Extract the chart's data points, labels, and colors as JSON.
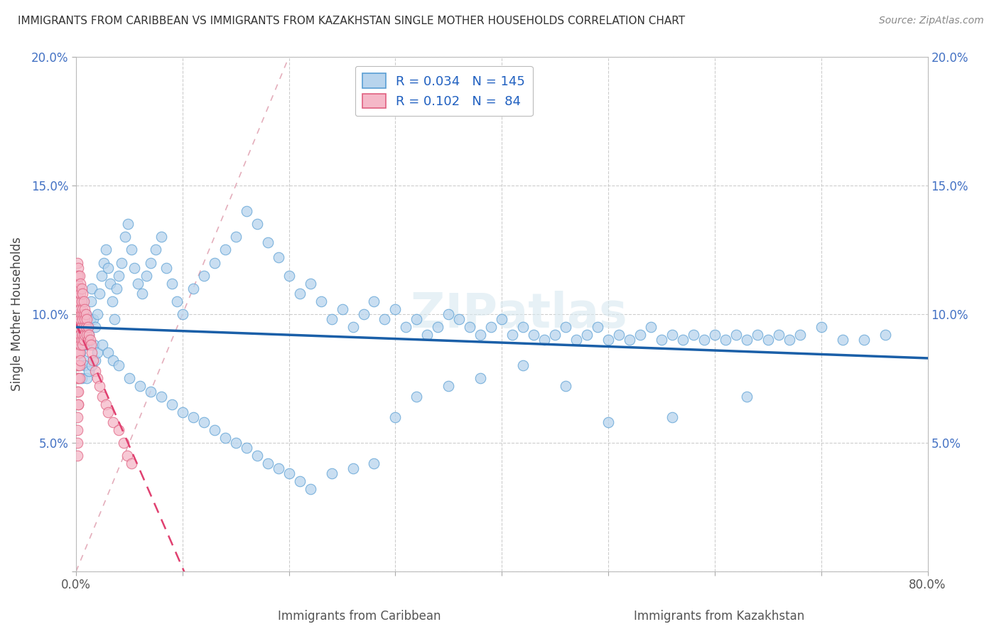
{
  "title": "IMMIGRANTS FROM CARIBBEAN VS IMMIGRANTS FROM KAZAKHSTAN SINGLE MOTHER HOUSEHOLDS CORRELATION CHART",
  "source": "Source: ZipAtlas.com",
  "ylabel": "Single Mother Households",
  "xlabel_caribbean": "Immigrants from Caribbean",
  "xlabel_kazakhstan": "Immigrants from Kazakhstan",
  "legend_caribbean_R": "0.034",
  "legend_caribbean_N": "145",
  "legend_kazakhstan_R": "0.102",
  "legend_kazakhstan_N": "84",
  "xlim": [
    0,
    0.8
  ],
  "ylim": [
    0,
    0.2
  ],
  "color_caribbean": "#b8d4ed",
  "color_caribbean_edge": "#5a9fd4",
  "color_caribbean_line": "#1a5fa8",
  "color_kazakhstan": "#f5b8c8",
  "color_kazakhstan_edge": "#e06080",
  "color_kazakhstan_line": "#e04070",
  "color_diag": "#e0a0b0",
  "watermark": "ZIPatlas",
  "caribbean_x": [
    0.003,
    0.004,
    0.005,
    0.006,
    0.007,
    0.008,
    0.009,
    0.01,
    0.011,
    0.012,
    0.013,
    0.014,
    0.015,
    0.016,
    0.017,
    0.018,
    0.02,
    0.022,
    0.024,
    0.026,
    0.028,
    0.03,
    0.032,
    0.034,
    0.036,
    0.038,
    0.04,
    0.043,
    0.046,
    0.049,
    0.052,
    0.055,
    0.058,
    0.062,
    0.066,
    0.07,
    0.075,
    0.08,
    0.085,
    0.09,
    0.095,
    0.1,
    0.11,
    0.12,
    0.13,
    0.14,
    0.15,
    0.16,
    0.17,
    0.18,
    0.19,
    0.2,
    0.21,
    0.22,
    0.23,
    0.24,
    0.25,
    0.26,
    0.27,
    0.28,
    0.29,
    0.3,
    0.31,
    0.32,
    0.33,
    0.34,
    0.35,
    0.36,
    0.37,
    0.38,
    0.39,
    0.4,
    0.41,
    0.42,
    0.43,
    0.44,
    0.45,
    0.46,
    0.47,
    0.48,
    0.49,
    0.5,
    0.51,
    0.52,
    0.53,
    0.54,
    0.55,
    0.56,
    0.57,
    0.58,
    0.59,
    0.6,
    0.61,
    0.62,
    0.63,
    0.64,
    0.65,
    0.66,
    0.67,
    0.68,
    0.7,
    0.72,
    0.74,
    0.76,
    0.005,
    0.008,
    0.01,
    0.012,
    0.015,
    0.018,
    0.02,
    0.025,
    0.03,
    0.035,
    0.04,
    0.05,
    0.06,
    0.07,
    0.08,
    0.09,
    0.1,
    0.11,
    0.12,
    0.13,
    0.14,
    0.15,
    0.16,
    0.17,
    0.18,
    0.19,
    0.2,
    0.21,
    0.22,
    0.24,
    0.26,
    0.28,
    0.3,
    0.32,
    0.35,
    0.38,
    0.42,
    0.46,
    0.5,
    0.56,
    0.63
  ],
  "caribbean_y": [
    0.09,
    0.085,
    0.092,
    0.088,
    0.082,
    0.095,
    0.1,
    0.088,
    0.095,
    0.092,
    0.098,
    0.105,
    0.11,
    0.098,
    0.088,
    0.095,
    0.1,
    0.108,
    0.115,
    0.12,
    0.125,
    0.118,
    0.112,
    0.105,
    0.098,
    0.11,
    0.115,
    0.12,
    0.13,
    0.135,
    0.125,
    0.118,
    0.112,
    0.108,
    0.115,
    0.12,
    0.125,
    0.13,
    0.118,
    0.112,
    0.105,
    0.1,
    0.11,
    0.115,
    0.12,
    0.125,
    0.13,
    0.14,
    0.135,
    0.128,
    0.122,
    0.115,
    0.108,
    0.112,
    0.105,
    0.098,
    0.102,
    0.095,
    0.1,
    0.105,
    0.098,
    0.102,
    0.095,
    0.098,
    0.092,
    0.095,
    0.1,
    0.098,
    0.095,
    0.092,
    0.095,
    0.098,
    0.092,
    0.095,
    0.092,
    0.09,
    0.092,
    0.095,
    0.09,
    0.092,
    0.095,
    0.09,
    0.092,
    0.09,
    0.092,
    0.095,
    0.09,
    0.092,
    0.09,
    0.092,
    0.09,
    0.092,
    0.09,
    0.092,
    0.09,
    0.092,
    0.09,
    0.092,
    0.09,
    0.092,
    0.095,
    0.09,
    0.09,
    0.092,
    0.075,
    0.08,
    0.075,
    0.078,
    0.08,
    0.082,
    0.085,
    0.088,
    0.085,
    0.082,
    0.08,
    0.075,
    0.072,
    0.07,
    0.068,
    0.065,
    0.062,
    0.06,
    0.058,
    0.055,
    0.052,
    0.05,
    0.048,
    0.045,
    0.042,
    0.04,
    0.038,
    0.035,
    0.032,
    0.038,
    0.04,
    0.042,
    0.06,
    0.068,
    0.072,
    0.075,
    0.08,
    0.072,
    0.058,
    0.06,
    0.068
  ],
  "kazakhstan_x": [
    0.001,
    0.001,
    0.001,
    0.001,
    0.001,
    0.001,
    0.001,
    0.001,
    0.001,
    0.001,
    0.001,
    0.001,
    0.002,
    0.002,
    0.002,
    0.002,
    0.002,
    0.002,
    0.002,
    0.002,
    0.002,
    0.002,
    0.002,
    0.002,
    0.003,
    0.003,
    0.003,
    0.003,
    0.003,
    0.003,
    0.003,
    0.003,
    0.003,
    0.004,
    0.004,
    0.004,
    0.004,
    0.004,
    0.004,
    0.004,
    0.005,
    0.005,
    0.005,
    0.005,
    0.005,
    0.006,
    0.006,
    0.006,
    0.006,
    0.006,
    0.007,
    0.007,
    0.007,
    0.007,
    0.008,
    0.008,
    0.008,
    0.009,
    0.009,
    0.01,
    0.01,
    0.011,
    0.011,
    0.012,
    0.013,
    0.014,
    0.015,
    0.016,
    0.018,
    0.02,
    0.022,
    0.025,
    0.028,
    0.03,
    0.035,
    0.04,
    0.045,
    0.048,
    0.052,
    0.001,
    0.001,
    0.001,
    0.001,
    0.002
  ],
  "kazakhstan_y": [
    0.12,
    0.115,
    0.112,
    0.108,
    0.105,
    0.1,
    0.095,
    0.09,
    0.085,
    0.08,
    0.075,
    0.07,
    0.118,
    0.115,
    0.11,
    0.105,
    0.1,
    0.095,
    0.09,
    0.085,
    0.08,
    0.075,
    0.07,
    0.065,
    0.115,
    0.11,
    0.105,
    0.1,
    0.095,
    0.09,
    0.085,
    0.08,
    0.075,
    0.112,
    0.108,
    0.102,
    0.098,
    0.092,
    0.088,
    0.082,
    0.11,
    0.105,
    0.1,
    0.095,
    0.09,
    0.108,
    0.102,
    0.098,
    0.092,
    0.088,
    0.105,
    0.1,
    0.095,
    0.09,
    0.102,
    0.098,
    0.092,
    0.1,
    0.095,
    0.098,
    0.092,
    0.095,
    0.09,
    0.092,
    0.09,
    0.088,
    0.085,
    0.082,
    0.078,
    0.075,
    0.072,
    0.068,
    0.065,
    0.062,
    0.058,
    0.055,
    0.05,
    0.045,
    0.042,
    0.06,
    0.055,
    0.05,
    0.045,
    0.065
  ]
}
